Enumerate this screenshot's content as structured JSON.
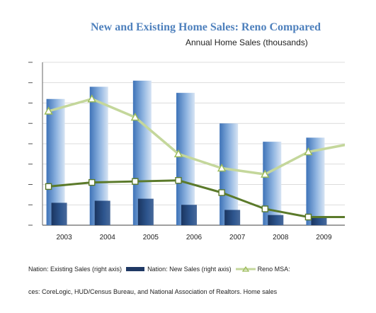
{
  "chart_data": {
    "type": "bar",
    "title": "New and Existing Home Sales: Reno Compared",
    "subtitle": "Annual Home Sales (thousands)",
    "categories": [
      "2003",
      "2004",
      "2005",
      "2006",
      "2007",
      "2008",
      "2009"
    ],
    "series": [
      {
        "name": "Nation: Existing Sales (right axis)",
        "type": "bar",
        "axis": "right",
        "values": [
          6.2,
          6.8,
          7.1,
          6.5,
          5.0,
          4.1,
          4.3
        ]
      },
      {
        "name": "Nation: New Sales (right axis)",
        "type": "bar",
        "axis": "right",
        "values": [
          1.1,
          1.2,
          1.3,
          1.0,
          0.75,
          0.5,
          0.4
        ]
      },
      {
        "name": "Reno MSA:",
        "type": "line",
        "axis": "left",
        "values": [
          5.6,
          6.2,
          5.3,
          3.5,
          2.8,
          2.5,
          3.6
        ]
      },
      {
        "name": "",
        "type": "line",
        "axis": "left",
        "values": [
          1.9,
          2.1,
          2.15,
          2.2,
          1.6,
          0.8,
          0.4
        ]
      }
    ],
    "ylim": [
      0,
      8
    ],
    "grid": true,
    "legend_position": "bottom",
    "colors": {
      "existing": "#4f81bd",
      "new": "#1f3864",
      "reno_line": "#c4d79b",
      "second_line": "#5b7a2a"
    }
  },
  "legend": {
    "existing_label": "Nation: Existing Sales (right axis)",
    "new_label": "Nation: New Sales (right axis)",
    "reno_label": "Reno MSA:"
  },
  "source_text": "ces: CoreLogic, HUD/Census  Bureau, and National Association of Realtors. Home sales"
}
